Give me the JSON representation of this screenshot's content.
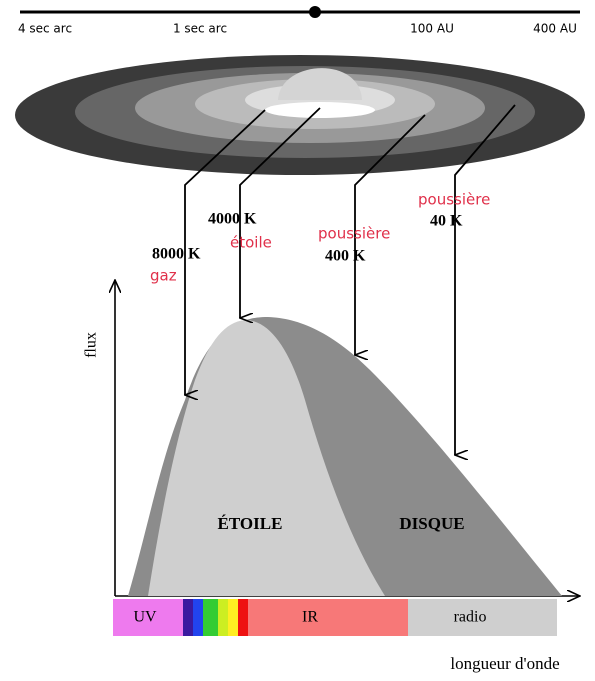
{
  "scale": {
    "labels": [
      "4 sec arc",
      "1 sec arc",
      "100 AU",
      "400 AU"
    ]
  },
  "arrows": [
    {
      "temp": "8000 K",
      "name": "gaz"
    },
    {
      "temp": "4000 K",
      "name": "étoile"
    },
    {
      "temp": "400 K",
      "name": "poussière"
    },
    {
      "temp": "40 K",
      "name": "poussière"
    }
  ],
  "axis": {
    "y_label": "flux",
    "x_label": "longueur d'onde"
  },
  "regions": {
    "star": "ÉTOILE",
    "disk": "DISQUE"
  },
  "spectrum": {
    "uv": "UV",
    "ir": "IR",
    "radio": "radio"
  }
}
